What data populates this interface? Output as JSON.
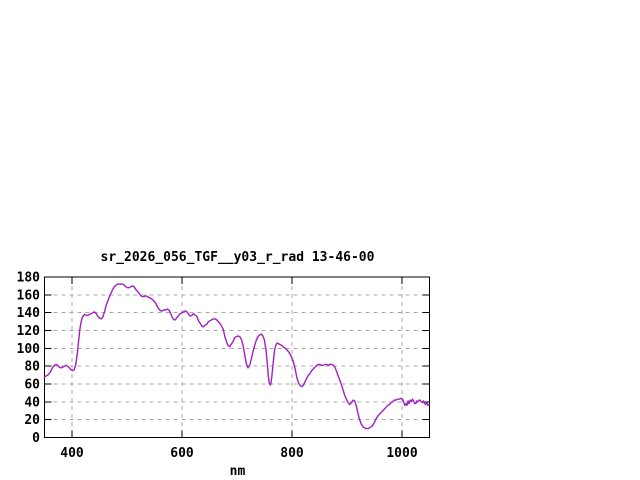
{
  "chart": {
    "title": "sr_2026_056_TGF__y03_r_rad 13-46-00",
    "xlabel": "nm"
  },
  "colors": {
    "background": "#ffffff",
    "border": "#000000",
    "grid": "#a8a8a8",
    "text": "#000000",
    "line": "#a020c0"
  },
  "chart_data": {
    "type": "line",
    "title": "sr_2026_056_TGF__y03_r_rad 13-46-00",
    "xlabel": "nm",
    "ylabel": "",
    "xlim": [
      350,
      1050
    ],
    "ylim": [
      0,
      180
    ],
    "x_ticks": [
      400,
      600,
      800,
      1000
    ],
    "y_ticks": [
      0,
      20,
      40,
      60,
      80,
      100,
      120,
      140,
      160,
      180
    ],
    "grid": true,
    "legend": "none",
    "series": [
      {
        "name": "sr_2026_056_TGF__y03_r_rad",
        "color": "#a020c0",
        "points": [
          [
            350,
            68
          ],
          [
            353,
            69
          ],
          [
            356,
            70
          ],
          [
            359,
            72
          ],
          [
            362,
            75
          ],
          [
            365,
            79
          ],
          [
            368,
            81
          ],
          [
            371,
            82
          ],
          [
            374,
            81
          ],
          [
            377,
            79
          ],
          [
            380,
            78
          ],
          [
            383,
            79
          ],
          [
            386,
            80
          ],
          [
            389,
            81
          ],
          [
            392,
            80
          ],
          [
            395,
            78
          ],
          [
            398,
            76
          ],
          [
            401,
            75
          ],
          [
            404,
            76
          ],
          [
            407,
            82
          ],
          [
            410,
            96
          ],
          [
            412,
            108
          ],
          [
            414,
            120
          ],
          [
            416,
            128
          ],
          [
            418,
            133
          ],
          [
            420,
            136
          ],
          [
            423,
            138
          ],
          [
            426,
            137
          ],
          [
            429,
            137
          ],
          [
            432,
            138
          ],
          [
            435,
            139
          ],
          [
            438,
            140
          ],
          [
            441,
            141
          ],
          [
            444,
            139
          ],
          [
            447,
            136
          ],
          [
            450,
            134
          ],
          [
            453,
            133
          ],
          [
            456,
            135
          ],
          [
            459,
            141
          ],
          [
            462,
            148
          ],
          [
            465,
            153
          ],
          [
            468,
            158
          ],
          [
            471,
            162
          ],
          [
            474,
            166
          ],
          [
            477,
            169
          ],
          [
            480,
            171
          ],
          [
            483,
            172
          ],
          [
            486,
            172
          ],
          [
            489,
            172
          ],
          [
            492,
            172
          ],
          [
            495,
            171
          ],
          [
            498,
            169
          ],
          [
            501,
            168
          ],
          [
            504,
            168
          ],
          [
            507,
            169
          ],
          [
            510,
            170
          ],
          [
            513,
            169
          ],
          [
            516,
            166
          ],
          [
            519,
            164
          ],
          [
            522,
            162
          ],
          [
            525,
            159
          ],
          [
            528,
            158
          ],
          [
            531,
            158
          ],
          [
            534,
            159
          ],
          [
            537,
            158
          ],
          [
            540,
            157
          ],
          [
            543,
            156
          ],
          [
            546,
            155
          ],
          [
            549,
            153
          ],
          [
            552,
            151
          ],
          [
            555,
            147
          ],
          [
            558,
            144
          ],
          [
            561,
            142
          ],
          [
            564,
            142
          ],
          [
            567,
            143
          ],
          [
            570,
            143
          ],
          [
            573,
            144
          ],
          [
            576,
            143
          ],
          [
            579,
            140
          ],
          [
            582,
            135
          ],
          [
            585,
            132
          ],
          [
            588,
            132
          ],
          [
            591,
            135
          ],
          [
            594,
            137
          ],
          [
            597,
            139
          ],
          [
            600,
            140
          ],
          [
            603,
            141
          ],
          [
            606,
            142
          ],
          [
            609,
            141
          ],
          [
            612,
            138
          ],
          [
            615,
            136
          ],
          [
            618,
            137
          ],
          [
            621,
            139
          ],
          [
            624,
            137
          ],
          [
            627,
            136
          ],
          [
            630,
            131
          ],
          [
            633,
            128
          ],
          [
            636,
            125
          ],
          [
            639,
            124
          ],
          [
            642,
            126
          ],
          [
            645,
            127
          ],
          [
            648,
            130
          ],
          [
            651,
            131
          ],
          [
            654,
            132
          ],
          [
            657,
            133
          ],
          [
            660,
            133
          ],
          [
            663,
            132
          ],
          [
            666,
            130
          ],
          [
            669,
            128
          ],
          [
            672,
            125
          ],
          [
            675,
            121
          ],
          [
            678,
            113
          ],
          [
            681,
            107
          ],
          [
            684,
            103
          ],
          [
            687,
            102
          ],
          [
            690,
            105
          ],
          [
            693,
            108
          ],
          [
            696,
            112
          ],
          [
            699,
            113
          ],
          [
            702,
            114
          ],
          [
            705,
            113
          ],
          [
            708,
            110
          ],
          [
            711,
            103
          ],
          [
            714,
            93
          ],
          [
            717,
            83
          ],
          [
            720,
            78
          ],
          [
            723,
            81
          ],
          [
            726,
            88
          ],
          [
            729,
            96
          ],
          [
            732,
            103
          ],
          [
            735,
            109
          ],
          [
            738,
            113
          ],
          [
            741,
            115
          ],
          [
            744,
            116
          ],
          [
            747,
            114
          ],
          [
            750,
            109
          ],
          [
            753,
            97
          ],
          [
            755,
            83
          ],
          [
            757,
            68
          ],
          [
            759,
            60
          ],
          [
            761,
            59
          ],
          [
            763,
            66
          ],
          [
            765,
            79
          ],
          [
            767,
            92
          ],
          [
            769,
            100
          ],
          [
            771,
            104
          ],
          [
            773,
            106
          ],
          [
            776,
            105
          ],
          [
            779,
            104
          ],
          [
            782,
            103
          ],
          [
            785,
            101
          ],
          [
            788,
            100
          ],
          [
            791,
            98
          ],
          [
            794,
            96
          ],
          [
            797,
            93
          ],
          [
            800,
            89
          ],
          [
            803,
            84
          ],
          [
            806,
            76
          ],
          [
            809,
            67
          ],
          [
            812,
            61
          ],
          [
            815,
            58
          ],
          [
            818,
            57
          ],
          [
            821,
            59
          ],
          [
            824,
            63
          ],
          [
            827,
            67
          ],
          [
            830,
            70
          ],
          [
            833,
            72
          ],
          [
            836,
            75
          ],
          [
            839,
            77
          ],
          [
            842,
            79
          ],
          [
            845,
            81
          ],
          [
            848,
            82
          ],
          [
            851,
            82
          ],
          [
            854,
            81
          ],
          [
            857,
            81
          ],
          [
            860,
            82
          ],
          [
            863,
            82
          ],
          [
            866,
            81
          ],
          [
            869,
            82
          ],
          [
            872,
            82
          ],
          [
            875,
            81
          ],
          [
            878,
            79
          ],
          [
            881,
            74
          ],
          [
            884,
            69
          ],
          [
            887,
            64
          ],
          [
            890,
            59
          ],
          [
            893,
            53
          ],
          [
            896,
            47
          ],
          [
            899,
            43
          ],
          [
            902,
            39
          ],
          [
            905,
            37
          ],
          [
            908,
            39
          ],
          [
            911,
            42
          ],
          [
            914,
            41
          ],
          [
            917,
            35
          ],
          [
            920,
            27
          ],
          [
            923,
            20
          ],
          [
            926,
            15
          ],
          [
            929,
            12
          ],
          [
            932,
            11
          ],
          [
            935,
            10
          ],
          [
            938,
            10
          ],
          [
            941,
            11
          ],
          [
            944,
            12
          ],
          [
            947,
            14
          ],
          [
            950,
            17
          ],
          [
            953,
            21
          ],
          [
            956,
            24
          ],
          [
            959,
            26
          ],
          [
            962,
            28
          ],
          [
            965,
            30
          ],
          [
            968,
            32
          ],
          [
            971,
            34
          ],
          [
            974,
            36
          ],
          [
            977,
            37
          ],
          [
            980,
            39
          ],
          [
            983,
            40
          ],
          [
            986,
            42
          ],
          [
            989,
            42
          ],
          [
            992,
            43
          ],
          [
            995,
            43
          ],
          [
            998,
            44
          ],
          [
            1001,
            43
          ],
          [
            1003,
            40
          ],
          [
            1005,
            36
          ],
          [
            1007,
            38
          ],
          [
            1009,
            36
          ],
          [
            1011,
            41
          ],
          [
            1013,
            38
          ],
          [
            1015,
            42
          ],
          [
            1017,
            40
          ],
          [
            1019,
            43
          ],
          [
            1021,
            41
          ],
          [
            1023,
            38
          ],
          [
            1025,
            38
          ],
          [
            1027,
            41
          ],
          [
            1029,
            40
          ],
          [
            1031,
            42
          ],
          [
            1033,
            42
          ],
          [
            1035,
            40
          ],
          [
            1037,
            39
          ],
          [
            1039,
            41
          ],
          [
            1041,
            38
          ],
          [
            1043,
            37
          ],
          [
            1045,
            39
          ],
          [
            1047,
            36
          ],
          [
            1049,
            37
          ]
        ]
      }
    ]
  }
}
